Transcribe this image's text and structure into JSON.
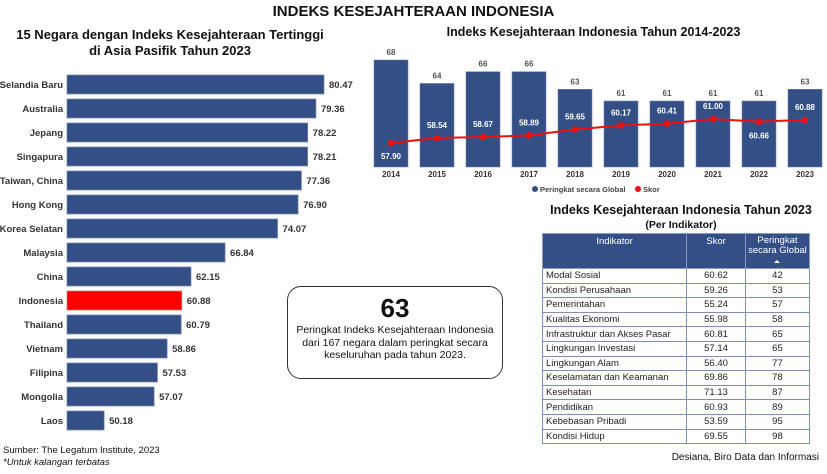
{
  "main_title": "INDEKS KESEJAHTERAAN INDONESIA",
  "colors": {
    "bar": "#344f86",
    "highlight": "#ff0000",
    "line": "#ee1111"
  },
  "chart_data": [
    {
      "type": "bar",
      "orientation": "horizontal",
      "title_line1": "15 Negara dengan Indeks Kesejahteraan Tertinggi",
      "title_line2": "di Asia Pasifik Tahun 2023",
      "categories": [
        "Selandia Baru",
        "Australia",
        "Jepang",
        "Singapura",
        "Taiwan, China",
        "Hong Kong",
        "Korea Selatan",
        "Malaysia",
        "China",
        "Indonesia",
        "Thailand",
        "Vietnam",
        "Filipina",
        "Mongolia",
        "Laos"
      ],
      "values": [
        80.47,
        79.36,
        78.22,
        78.21,
        77.36,
        76.9,
        74.07,
        66.84,
        62.15,
        60.88,
        60.79,
        58.86,
        57.53,
        57.07,
        50.18
      ],
      "labels": [
        "80.47",
        "79.36",
        "78.22",
        "78.21",
        "77.36",
        "76.90",
        "74.07",
        "66.84",
        "62.15",
        "60.88",
        "60.79",
        "58.86",
        "57.53",
        "57.07",
        "50.18"
      ],
      "highlight": "Indonesia"
    },
    {
      "type": "bar+line",
      "title": "Indeks Kesejahteraan Indonesia Tahun 2014-2023",
      "categories": [
        "2014",
        "2015",
        "2016",
        "2017",
        "2018",
        "2019",
        "2020",
        "2021",
        "2022",
        "2023"
      ],
      "series": [
        {
          "name": "Peringkat secara Global",
          "type": "bar",
          "values": [
            68,
            64,
            66,
            66,
            63,
            61,
            61,
            61,
            61,
            63
          ],
          "labels": [
            "68",
            "64",
            "66",
            "66",
            "63",
            "61",
            "61",
            "61",
            "61",
            "63"
          ]
        },
        {
          "name": "Skor",
          "type": "line",
          "values": [
            57.9,
            58.54,
            58.67,
            58.89,
            59.65,
            60.17,
            60.41,
            61.0,
            60.66,
            60.88
          ],
          "labels": [
            "57.90",
            "58.54",
            "58.67",
            "58.89",
            "59.65",
            "60.17",
            "60.41",
            "61.00",
            "60.66",
            "60.88"
          ]
        }
      ],
      "legend": "bottom"
    },
    {
      "type": "table",
      "title": "Indeks Kesejahteraan Indonesia Tahun 2023",
      "subtitle": "(Per Indikator)",
      "columns": [
        "Indikator",
        "Skor",
        "Peringkat secara Global"
      ],
      "rows": [
        [
          "Modal Sosial",
          "60.62",
          "42"
        ],
        [
          "Kondisi Perusahaan",
          "59.26",
          "53"
        ],
        [
          "Pemerintahan",
          "55.24",
          "57"
        ],
        [
          "Kualitas Ekonomi",
          "55.98",
          "58"
        ],
        [
          "Infrastruktur dan Akses Pasar",
          "60.81",
          "65"
        ],
        [
          "Lingkungan Investasi",
          "57.14",
          "65"
        ],
        [
          "Lingkungan Alam",
          "56.40",
          "77"
        ],
        [
          "Keselamatan dan Keamanan",
          "69.86",
          "78"
        ],
        [
          "Kesehatan",
          "71.13",
          "87"
        ],
        [
          "Pendidikan",
          "60.93",
          "89"
        ],
        [
          "Kebebasan Pribadi",
          "53.59",
          "95"
        ],
        [
          "Kondisi Hidup",
          "69.55",
          "98"
        ]
      ]
    }
  ],
  "summary": {
    "rank": "63",
    "text": "Peringkat Indeks Kesejahteraan Indonesia dari 167 negara dalam peringkat secara keseluruhan pada tahun 2023."
  },
  "footer": {
    "source": "Sumber: The Legatum Institute, 2023",
    "note": "*Untuk kalangan terbatas",
    "credit": "Desiana, Biro Data dan Informasi"
  }
}
